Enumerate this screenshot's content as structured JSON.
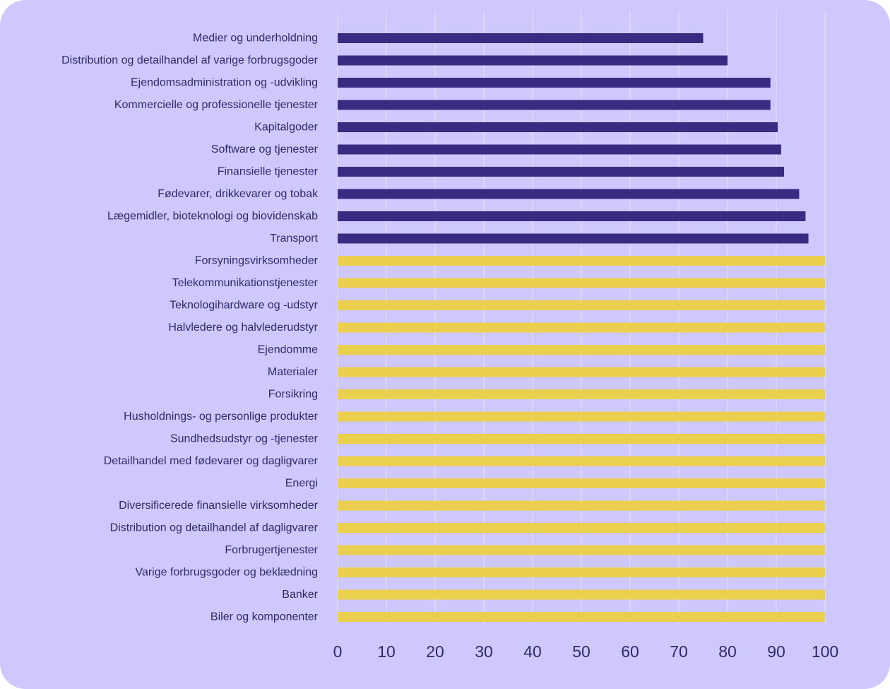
{
  "theme": {
    "background": "#cfc8fc",
    "text": "#2f2a6b",
    "grid": "#e4e0fd",
    "series_below_100": "#3b2a82",
    "series_at_100": "#ebcf4e"
  },
  "chart_data": {
    "type": "bar",
    "orientation": "horizontal",
    "title": "",
    "xlabel": "",
    "ylabel": "",
    "xlim": [
      0,
      100
    ],
    "x_ticks": [
      "0",
      "10",
      "20",
      "30",
      "40",
      "50",
      "60",
      "70",
      "80",
      "90",
      "100"
    ],
    "grid": true,
    "categories": [
      "Medier og underholdning",
      "Distribution og detailhandel af varige forbrugsgoder",
      "Ejendomsadministration og -udvikling",
      "Kommercielle og professionelle tjenester",
      "Kapitalgoder",
      "Software og tjenester",
      "Finansielle tjenester",
      "Fødevarer, drikkevarer og tobak",
      "Lægemidler, bioteknologi og biovidenskab",
      "Transport",
      "Forsyningsvirksomheder",
      "Telekommunikationstjenester",
      "Teknologihardware og -udstyr",
      "Halvledere og halvlederudstyr",
      "Ejendomme",
      "Materialer",
      "Forsikring",
      "Husholdnings- og personlige produkter",
      "Sundhedsudstyr og -tjenester",
      "Detailhandel med fødevarer og dagligvarer",
      "Energi",
      "Diversificerede finansielle virksomheder",
      "Distribution og detailhandel af dagligvarer",
      "Forbrugertjenester",
      "Varige forbrugsgoder og beklædning",
      "Banker",
      "Biler og komponenter"
    ],
    "values": [
      75,
      80,
      88.8,
      88.8,
      90.3,
      91,
      91.6,
      94.7,
      96,
      96.6,
      100,
      100,
      100,
      100,
      100,
      100,
      100,
      100,
      100,
      100,
      100,
      100,
      100,
      100,
      100,
      100,
      100
    ]
  }
}
